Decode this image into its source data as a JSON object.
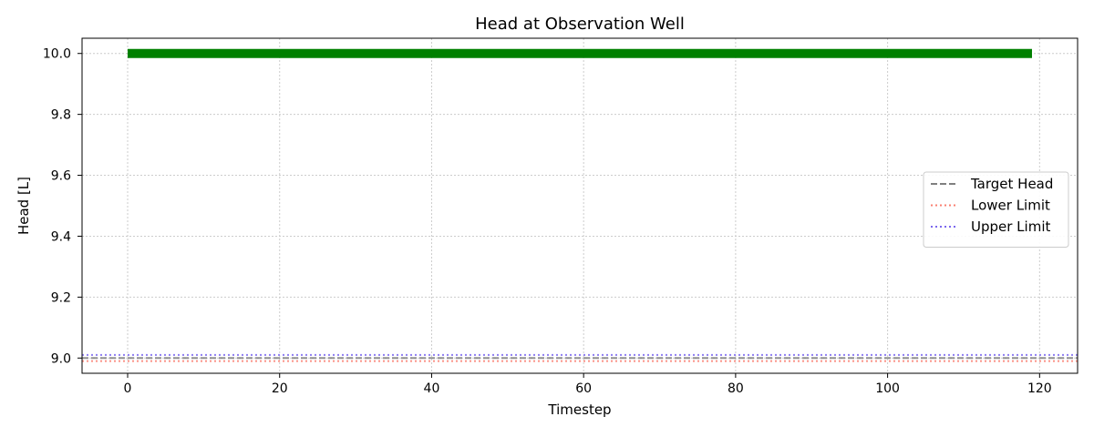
{
  "chart_data": {
    "type": "line",
    "title": "Head at Observation Well",
    "xlabel": "Timestep",
    "ylabel": "Head [L]",
    "xlim": [
      -6,
      125
    ],
    "ylim": [
      8.95,
      10.05
    ],
    "xticks": [
      0,
      20,
      40,
      60,
      80,
      100,
      120
    ],
    "yticks": [
      9.0,
      9.2,
      9.4,
      9.6,
      9.8,
      10.0
    ],
    "xtick_labels": [
      "0",
      "20",
      "40",
      "60",
      "80",
      "100",
      "120"
    ],
    "ytick_labels": [
      "9.0",
      "9.2",
      "9.4",
      "9.6",
      "9.8",
      "10.0"
    ],
    "grid": true,
    "legend_placement": "center-right",
    "series": [
      {
        "kind": "data",
        "x": [
          0,
          119
        ],
        "y": [
          10.0,
          10.0
        ],
        "color": "#008000",
        "style": "solid"
      },
      {
        "name": "Target Head",
        "kind": "hline",
        "y": 9.0,
        "color": "#808080",
        "style": "dashed"
      },
      {
        "name": "Lower Limit",
        "kind": "hline",
        "y": 8.99,
        "color": "#fa8072",
        "style": "dotted"
      },
      {
        "name": "Upper Limit",
        "kind": "hline",
        "y": 9.01,
        "color": "#7b68ee",
        "style": "dotted"
      }
    ]
  }
}
